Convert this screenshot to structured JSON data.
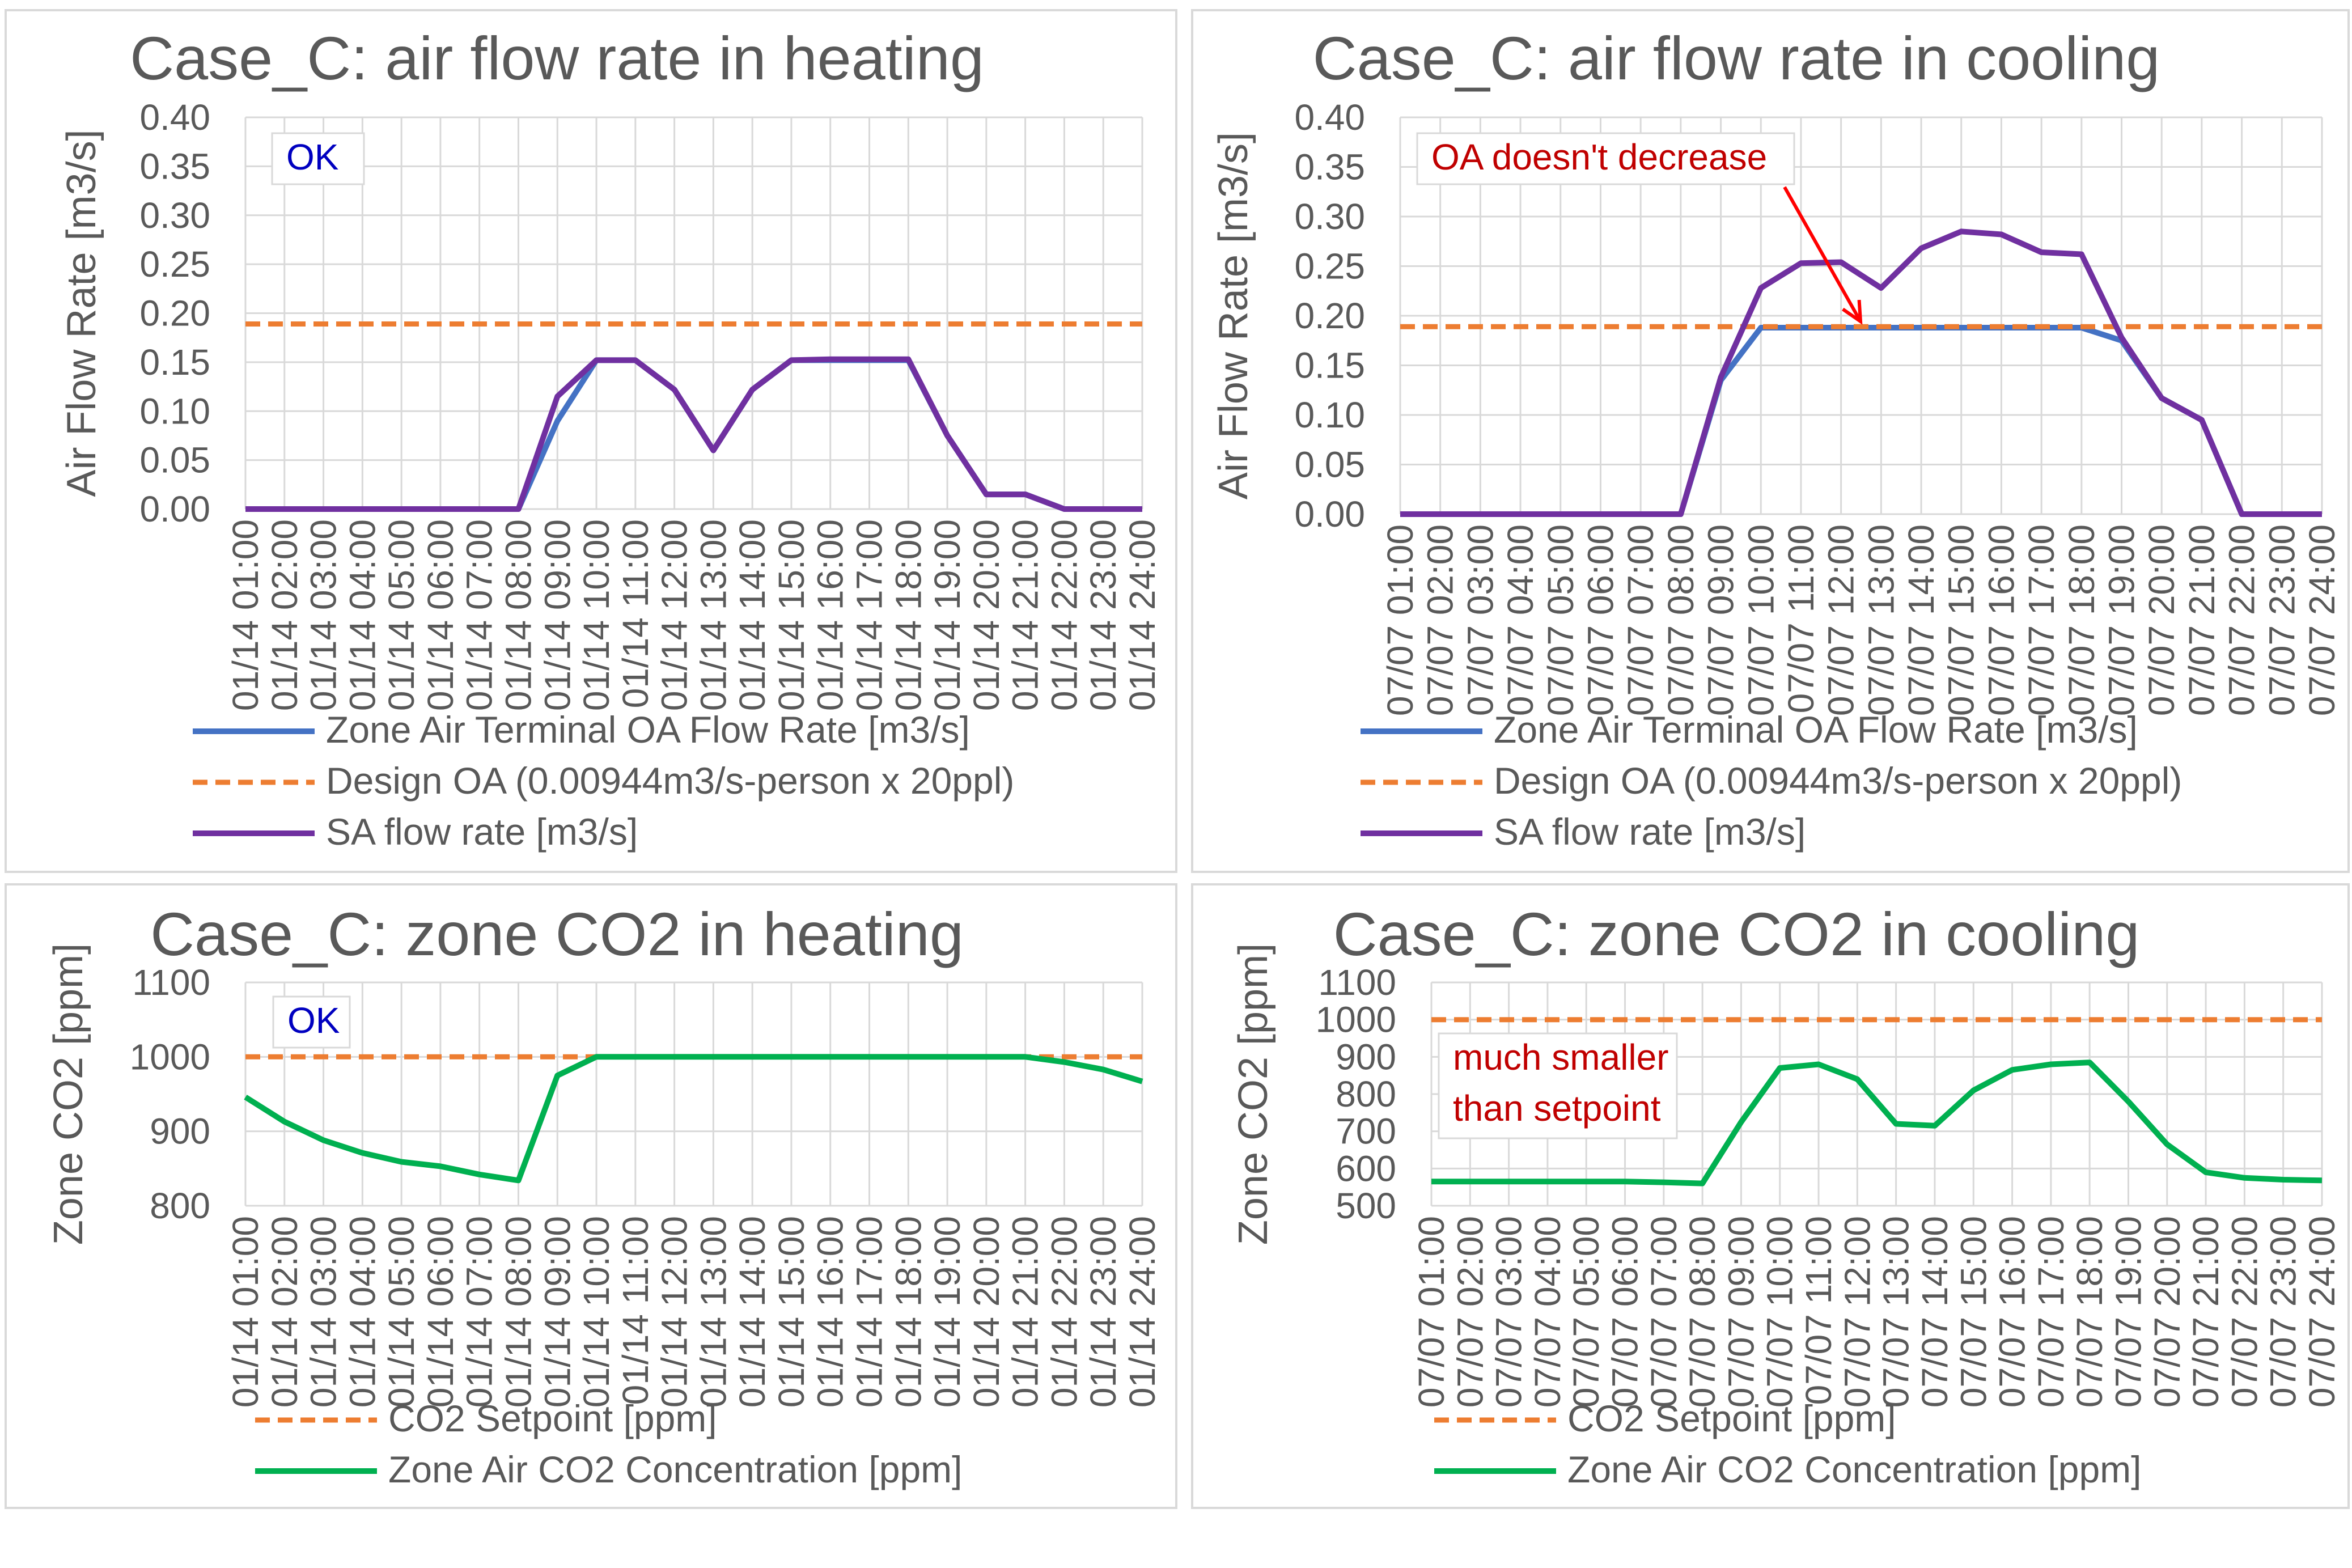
{
  "colors": {
    "oa": "#4472C4",
    "design": "#ED7D31",
    "sa": "#7030A0",
    "co2": "#00B050",
    "grid": "#D9D9D9",
    "ok_text": "#0000C0",
    "warn_text": "#C00000",
    "arrow": "#FF0000"
  },
  "chart_data": [
    {
      "type": "line",
      "title": "Case_C: air flow rate in heating",
      "ylabel": "Air Flow Rate [m3/s]",
      "ylim": [
        0,
        0.4
      ],
      "yticks": [
        "0.00",
        "0.05",
        "0.10",
        "0.15",
        "0.20",
        "0.25",
        "0.30",
        "0.35",
        "0.40"
      ],
      "grid": true,
      "categories": [
        "01/14  01:00",
        "01/14  02:00",
        "01/14  03:00",
        "01/14  04:00",
        "01/14  05:00",
        "01/14  06:00",
        "01/14  07:00",
        "01/14  08:00",
        "01/14  09:00",
        "01/14  10:00",
        "01/14  11:00",
        "01/14  12:00",
        "01/14  13:00",
        "01/14  14:00",
        "01/14  15:00",
        "01/14  16:00",
        "01/14  17:00",
        "01/14  18:00",
        "01/14  19:00",
        "01/14  20:00",
        "01/14  21:00",
        "01/14  22:00",
        "01/14  23:00",
        "01/14  24:00"
      ],
      "series": [
        {
          "name": "Zone Air Terminal OA Flow Rate [m3/s]",
          "color": "oa",
          "dash": false,
          "values": [
            0,
            0,
            0,
            0,
            0,
            0,
            0,
            0,
            0.09,
            0.152,
            0.152,
            0.122,
            0.06,
            0.122,
            0.152,
            0.152,
            0.152,
            0.152,
            0.075,
            0.015,
            0.015,
            0,
            0,
            0
          ]
        },
        {
          "name": "Design OA  (0.00944m3/s-person x 20ppl)",
          "color": "design",
          "dash": true,
          "values": [
            0.189,
            0.189,
            0.189,
            0.189,
            0.189,
            0.189,
            0.189,
            0.189,
            0.189,
            0.189,
            0.189,
            0.189,
            0.189,
            0.189,
            0.189,
            0.189,
            0.189,
            0.189,
            0.189,
            0.189,
            0.189,
            0.189,
            0.189,
            0.189
          ]
        },
        {
          "name": "SA flow rate [m3/s]",
          "color": "sa",
          "dash": false,
          "values": [
            0,
            0,
            0,
            0,
            0,
            0,
            0,
            0,
            0.115,
            0.152,
            0.152,
            0.122,
            0.06,
            0.122,
            0.152,
            0.153,
            0.153,
            0.153,
            0.075,
            0.015,
            0.015,
            0,
            0,
            0
          ]
        }
      ],
      "annotation": {
        "text": "OK",
        "color": "ok_text"
      },
      "annotation_lines": [
        "OK"
      ]
    },
    {
      "type": "line",
      "title": "Case_C: air flow rate in cooling",
      "ylabel": "Air Flow Rate [m3/s]",
      "ylim": [
        0,
        0.4
      ],
      "yticks": [
        "0.00",
        "0.05",
        "0.10",
        "0.15",
        "0.20",
        "0.25",
        "0.30",
        "0.35",
        "0.40"
      ],
      "grid": true,
      "categories": [
        "07/07  01:00",
        "07/07  02:00",
        "07/07  03:00",
        "07/07  04:00",
        "07/07  05:00",
        "07/07  06:00",
        "07/07  07:00",
        "07/07  08:00",
        "07/07  09:00",
        "07/07  10:00",
        "07/07  11:00",
        "07/07  12:00",
        "07/07  13:00",
        "07/07  14:00",
        "07/07  15:00",
        "07/07  16:00",
        "07/07  17:00",
        "07/07  18:00",
        "07/07  19:00",
        "07/07  20:00",
        "07/07  21:00",
        "07/07  22:00",
        "07/07  23:00",
        "07/07  24:00"
      ],
      "series": [
        {
          "name": "Zone Air Terminal OA Flow Rate [m3/s]",
          "color": "oa",
          "dash": false,
          "values": [
            0,
            0,
            0,
            0,
            0,
            0,
            0,
            0,
            0.135,
            0.188,
            0.188,
            0.188,
            0.188,
            0.188,
            0.188,
            0.188,
            0.188,
            0.188,
            0.175,
            0.117,
            0.095,
            0,
            0,
            0
          ]
        },
        {
          "name": "Design OA  (0.00944m3/s-person x 20ppl)",
          "color": "design",
          "dash": true,
          "values": [
            0.189,
            0.189,
            0.189,
            0.189,
            0.189,
            0.189,
            0.189,
            0.189,
            0.189,
            0.189,
            0.189,
            0.189,
            0.189,
            0.189,
            0.189,
            0.189,
            0.189,
            0.189,
            0.189,
            0.189,
            0.189,
            0.189,
            0.189,
            0.189
          ]
        },
        {
          "name": "SA flow rate [m3/s]",
          "color": "sa",
          "dash": false,
          "values": [
            0,
            0,
            0,
            0,
            0,
            0,
            0,
            0,
            0.138,
            0.228,
            0.253,
            0.254,
            0.228,
            0.268,
            0.285,
            0.282,
            0.264,
            0.262,
            0.178,
            0.117,
            0.095,
            0,
            0,
            0
          ]
        }
      ],
      "annotation": {
        "text": "OA doesn't decrease",
        "color": "warn_text"
      },
      "annotation_lines": [
        "OA doesn't decrease"
      ]
    },
    {
      "type": "line",
      "title": "Case_C: zone CO2 in heating",
      "ylabel": "Zone CO2 [ppm]",
      "ylim": [
        800,
        1100
      ],
      "yticks": [
        "800",
        "900",
        "1000",
        "1100"
      ],
      "grid": true,
      "categories": [
        "01/14  01:00",
        "01/14  02:00",
        "01/14  03:00",
        "01/14  04:00",
        "01/14  05:00",
        "01/14  06:00",
        "01/14  07:00",
        "01/14  08:00",
        "01/14  09:00",
        "01/14  10:00",
        "01/14  11:00",
        "01/14  12:00",
        "01/14  13:00",
        "01/14  14:00",
        "01/14  15:00",
        "01/14  16:00",
        "01/14  17:00",
        "01/14  18:00",
        "01/14  19:00",
        "01/14  20:00",
        "01/14  21:00",
        "01/14  22:00",
        "01/14  23:00",
        "01/14  24:00"
      ],
      "series": [
        {
          "name": "CO2 Setpoint [ppm]",
          "color": "design",
          "dash": true,
          "values": [
            1000,
            1000,
            1000,
            1000,
            1000,
            1000,
            1000,
            1000,
            1000,
            1000,
            1000,
            1000,
            1000,
            1000,
            1000,
            1000,
            1000,
            1000,
            1000,
            1000,
            1000,
            1000,
            1000,
            1000
          ]
        },
        {
          "name": "Zone Air CO2 Concentration [ppm]",
          "color": "co2",
          "dash": false,
          "values": [
            946,
            913,
            888,
            871,
            859,
            853,
            842,
            834,
            975,
            1000,
            1000,
            1000,
            1000,
            1000,
            1000,
            1000,
            1000,
            1000,
            1000,
            1000,
            1000,
            993,
            983,
            967
          ]
        }
      ],
      "annotation": {
        "text": "OK",
        "color": "ok_text"
      },
      "annotation_lines": [
        "OK"
      ]
    },
    {
      "type": "line",
      "title": "Case_C: zone CO2 in cooling",
      "ylabel": "Zone CO2 [ppm]",
      "ylim": [
        500,
        1100
      ],
      "yticks": [
        "500",
        "600",
        "700",
        "800",
        "900",
        "1000",
        "1100"
      ],
      "grid": true,
      "categories": [
        "07/07  01:00",
        "07/07  02:00",
        "07/07  03:00",
        "07/07  04:00",
        "07/07  05:00",
        "07/07  06:00",
        "07/07  07:00",
        "07/07  08:00",
        "07/07  09:00",
        "07/07  10:00",
        "07/07  11:00",
        "07/07  12:00",
        "07/07  13:00",
        "07/07  14:00",
        "07/07  15:00",
        "07/07  16:00",
        "07/07  17:00",
        "07/07  18:00",
        "07/07  19:00",
        "07/07  20:00",
        "07/07  21:00",
        "07/07  22:00",
        "07/07  23:00",
        "07/07  24:00"
      ],
      "series": [
        {
          "name": "CO2 Setpoint [ppm]",
          "color": "design",
          "dash": true,
          "values": [
            1000,
            1000,
            1000,
            1000,
            1000,
            1000,
            1000,
            1000,
            1000,
            1000,
            1000,
            1000,
            1000,
            1000,
            1000,
            1000,
            1000,
            1000,
            1000,
            1000,
            1000,
            1000,
            1000,
            1000
          ]
        },
        {
          "name": "Zone Air CO2 Concentration [ppm]",
          "color": "co2",
          "dash": false,
          "values": [
            565,
            565,
            565,
            565,
            565,
            565,
            563,
            560,
            725,
            870,
            880,
            840,
            720,
            715,
            810,
            865,
            880,
            885,
            780,
            665,
            590,
            575,
            570,
            568
          ]
        }
      ],
      "annotation": {
        "text": "much smaller than setpoint",
        "color": "warn_text"
      },
      "annotation_lines": [
        "much smaller",
        "than setpoint"
      ]
    }
  ]
}
